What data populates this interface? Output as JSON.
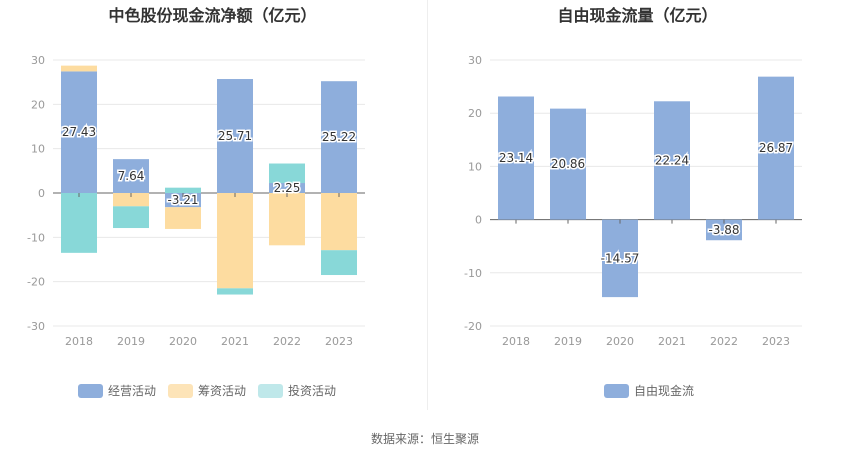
{
  "chart_data": [
    {
      "type": "bar",
      "stacked": true,
      "title": "中色股份现金流净额（亿元）",
      "categories": [
        "2018",
        "2019",
        "2020",
        "2021",
        "2022",
        "2023"
      ],
      "ylim": [
        -30,
        30
      ],
      "yticks": [
        "30",
        "20",
        "10",
        "0",
        "-10",
        "-20",
        "-30"
      ],
      "series": [
        {
          "name": "经营活动",
          "color": "#8eaedc",
          "values": [
            27.43,
            7.64,
            -3.21,
            25.71,
            2.25,
            25.22
          ]
        },
        {
          "name": "筹资活动",
          "color": "#fddca0",
          "values": [
            1.3,
            -3.0,
            -4.9,
            -21.5,
            -11.8,
            -12.9
          ]
        },
        {
          "name": "投资活动",
          "color": "#88d8d8",
          "values": [
            -13.5,
            -4.9,
            1.2,
            -1.4,
            4.4,
            -5.6
          ]
        }
      ],
      "labels": [
        "27.43",
        "7.64",
        "-3.21",
        "25.71",
        "2.25",
        "25.22"
      ],
      "legend_position": "bottom"
    },
    {
      "type": "bar",
      "title": "自由现金流量（亿元）",
      "categories": [
        "2018",
        "2019",
        "2020",
        "2021",
        "2022",
        "2023"
      ],
      "ylim": [
        -20,
        30
      ],
      "yticks": [
        "30",
        "20",
        "10",
        "0",
        "-10",
        "-20"
      ],
      "series": [
        {
          "name": "自由现金流",
          "color": "#8eaedc",
          "values": [
            23.14,
            20.86,
            -14.57,
            22.24,
            -3.88,
            26.87
          ]
        }
      ],
      "labels": [
        "23.14",
        "20.86",
        "-14.57",
        "22.24",
        "-3.88",
        "26.87"
      ],
      "legend_position": "bottom"
    }
  ],
  "source": "数据来源：恒生聚源"
}
